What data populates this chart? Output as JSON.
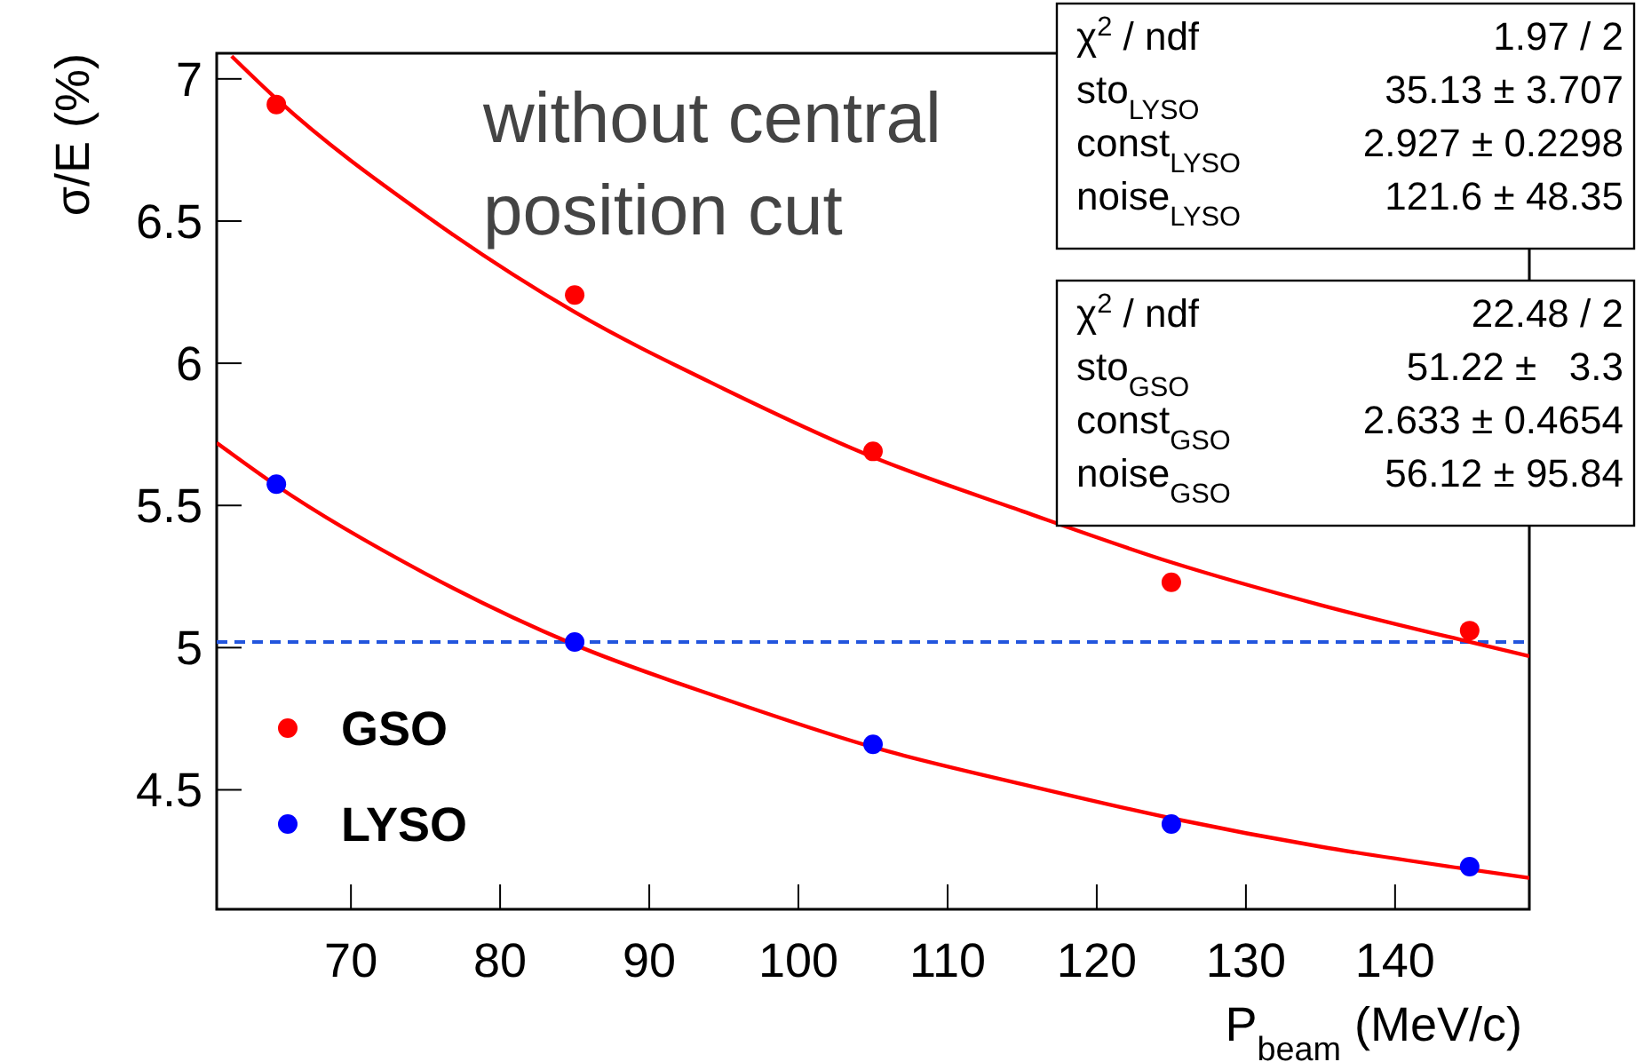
{
  "chart_data": {
    "type": "scatter",
    "xlabel": "P$_{beam}$ (MeV/c)",
    "ylabel": "σ/E (%)",
    "xlim": [
      61,
      149
    ],
    "xticks": [
      70,
      80,
      90,
      100,
      110,
      120,
      130,
      140
    ],
    "ylim": [
      4.08,
      7.09
    ],
    "yticks": [
      4.5,
      5,
      5.5,
      6,
      6.5,
      7
    ],
    "grid": false,
    "legend": "bottom left",
    "marker": "circle",
    "series": [
      {
        "name": "GSO",
        "color": "#ff0000",
        "x": [
          65,
          85,
          105,
          125,
          145
        ],
        "values": [
          6.91,
          6.24,
          5.69,
          5.23,
          5.06
        ]
      },
      {
        "name": "LYSO",
        "color": "#0000ff",
        "x": [
          65,
          85,
          105,
          125,
          145
        ],
        "values": [
          5.575,
          5.02,
          4.66,
          4.38,
          4.23
        ]
      },
      {
        "type": "line",
        "color": "#ff0000",
        "marker": "none",
        "line_style": "solid",
        "x": [
          62,
          65,
          75,
          85,
          95,
          105,
          115,
          125,
          135,
          145,
          149
        ],
        "values": [
          7.08,
          6.93,
          6.52,
          6.18,
          5.91,
          5.67,
          5.48,
          5.3,
          5.15,
          5.02,
          4.97
        ]
      },
      {
        "type": "line",
        "color": "#ff0000",
        "marker": "none",
        "line_style": "solid",
        "x": [
          61,
          65,
          75,
          85,
          95,
          105,
          115,
          125,
          135,
          145,
          149
        ],
        "values": [
          5.72,
          5.57,
          5.26,
          5.01,
          4.82,
          4.65,
          4.52,
          4.4,
          4.3,
          4.22,
          4.19
        ]
      }
    ],
    "ref_lines": [
      {
        "axis": "y",
        "value": 5.02,
        "color": "#2255dd",
        "line_style": "dashed"
      }
    ],
    "annotations": [
      "without central position cut",
      "χ$^{2}$ / ndf\t1.97 / 2",
      "sto$_{LYSO}$\t35.13 ± 3.707",
      "const$_{LYSO}$\t2.927 ± 0.2298",
      "noise$_{LYSO}$\t121.6 ± 48.35",
      "χ$^{2}$ / ndf\t22.48 / 2",
      "sto$_{GSO}$\t51.22 ±   3.3",
      "const$_{GSO}$\t2.633 ± 0.4654",
      "noise$_{GSO}$\t56.12 ± 95.84"
    ]
  }
}
